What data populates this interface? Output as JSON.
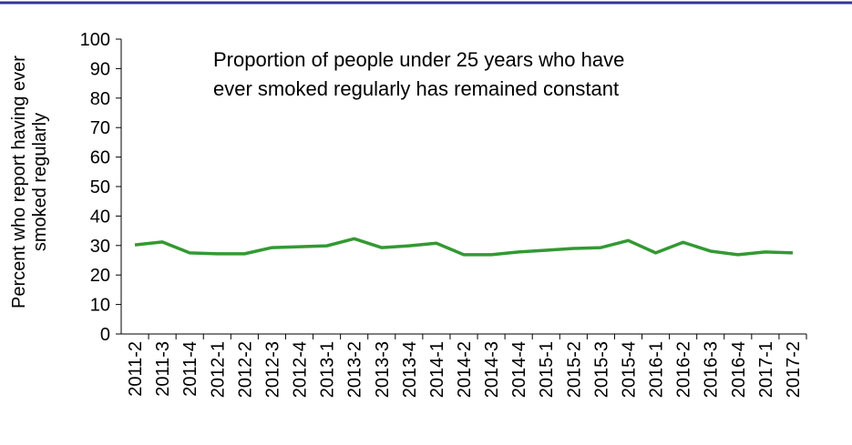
{
  "chart_data": {
    "type": "line",
    "annotation": "Proportion of people under 25 years who have ever smoked regularly has remained constant",
    "y_label": "Percent who report having ever smoked regularly",
    "categories": [
      "2011-2",
      "2011-3",
      "2011-4",
      "2012-1",
      "2012-2",
      "2012-3",
      "2012-4",
      "2013-1",
      "2013-2",
      "2013-3",
      "2013-4",
      "2014-1",
      "2014-2",
      "2014-3",
      "2014-4",
      "2015-1",
      "2015-2",
      "2015-3",
      "2015-4",
      "2016-1",
      "2016-2",
      "2016-3",
      "2016-4",
      "2017-1",
      "2017-2"
    ],
    "values": [
      30.2,
      31.2,
      27.5,
      27.2,
      27.2,
      29.3,
      29.6,
      29.9,
      32.3,
      29.3,
      29.9,
      30.8,
      26.9,
      26.9,
      27.8,
      28.4,
      29.0,
      29.3,
      31.7,
      27.5,
      31.1,
      28.1,
      26.9,
      27.8,
      27.5
    ],
    "color": "#339933",
    "ylim": [
      0,
      100
    ],
    "yticks": [
      0,
      10,
      20,
      30,
      40,
      50,
      60,
      70,
      80,
      90,
      100
    ],
    "grid": false
  }
}
